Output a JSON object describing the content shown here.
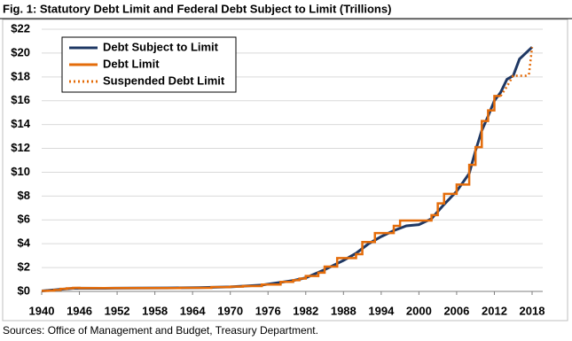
{
  "chart_data": {
    "type": "line",
    "title": "Fig. 1: Statutory Debt Limit and Federal Debt Subject to Limit (Trillions)",
    "source": "Sources: Office of Management and Budget, Treasury Department.",
    "xlim": [
      1940,
      2018
    ],
    "xticks": [
      1940,
      1946,
      1952,
      1958,
      1964,
      1970,
      1976,
      1982,
      1988,
      1994,
      2000,
      2006,
      2012,
      2018
    ],
    "ylim": [
      0,
      22
    ],
    "yticks": [
      {
        "value": 0,
        "label": "$0"
      },
      {
        "value": 2,
        "label": "$2"
      },
      {
        "value": 4,
        "label": "$4"
      },
      {
        "value": 6,
        "label": "$6"
      },
      {
        "value": 8,
        "label": "$8"
      },
      {
        "value": 10,
        "label": "$10"
      },
      {
        "value": 12,
        "label": "$12"
      },
      {
        "value": 14,
        "label": "$14"
      },
      {
        "value": 16,
        "label": "$16"
      },
      {
        "value": 18,
        "label": "$18"
      },
      {
        "value": 20,
        "label": "$20"
      },
      {
        "value": 22,
        "label": "$22"
      }
    ],
    "grid": true,
    "legend": "top-left",
    "series": [
      {
        "name": "Debt Subject to Limit",
        "color": "#1f3864",
        "style": "solid",
        "x": [
          1940,
          1945,
          1946,
          1950,
          1955,
          1960,
          1965,
          1970,
          1975,
          1980,
          1982,
          1985,
          1988,
          1990,
          1992,
          1994,
          1996,
          1998,
          2000,
          2002,
          2004,
          2006,
          2008,
          2009,
          2010,
          2011,
          2012,
          2013,
          2014,
          2015,
          2016,
          2017,
          2018
        ],
        "values": [
          0.04,
          0.26,
          0.27,
          0.26,
          0.28,
          0.29,
          0.32,
          0.38,
          0.53,
          0.91,
          1.14,
          1.82,
          2.6,
          3.2,
          4.0,
          4.6,
          5.1,
          5.5,
          5.6,
          6.1,
          7.3,
          8.4,
          9.9,
          11.8,
          13.5,
          14.7,
          16.0,
          16.7,
          17.8,
          18.1,
          19.5,
          20.0,
          20.5
        ]
      },
      {
        "name": "Debt Limit",
        "color": "#e46c0a",
        "style": "step",
        "x": [
          1940,
          1941,
          1942,
          1943,
          1944,
          1945,
          1946,
          1958,
          1962,
          1967,
          1970,
          1972,
          1975,
          1978,
          1980,
          1981,
          1982,
          1984,
          1985,
          1987,
          1990,
          1991,
          1993,
          1996,
          1997,
          2002,
          2003,
          2004,
          2006,
          2008,
          2009,
          2010,
          2011,
          2012,
          2013
        ],
        "values": [
          0.045,
          0.065,
          0.125,
          0.21,
          0.26,
          0.3,
          0.275,
          0.28,
          0.3,
          0.358,
          0.395,
          0.45,
          0.577,
          0.798,
          0.935,
          1.079,
          1.29,
          1.573,
          2.079,
          2.8,
          3.123,
          4.145,
          4.9,
          5.5,
          5.95,
          6.4,
          7.384,
          8.184,
          8.965,
          10.615,
          12.104,
          14.294,
          15.194,
          16.394,
          16.394
        ]
      },
      {
        "name": "Suspended Debt Limit",
        "color": "#e46c0a",
        "style": "dotted",
        "x": [
          2013,
          2014,
          2015,
          2017,
          2017.5,
          2018
        ],
        "values": [
          16.394,
          17.2,
          18.1,
          18.1,
          18.2,
          20.5
        ]
      }
    ]
  }
}
